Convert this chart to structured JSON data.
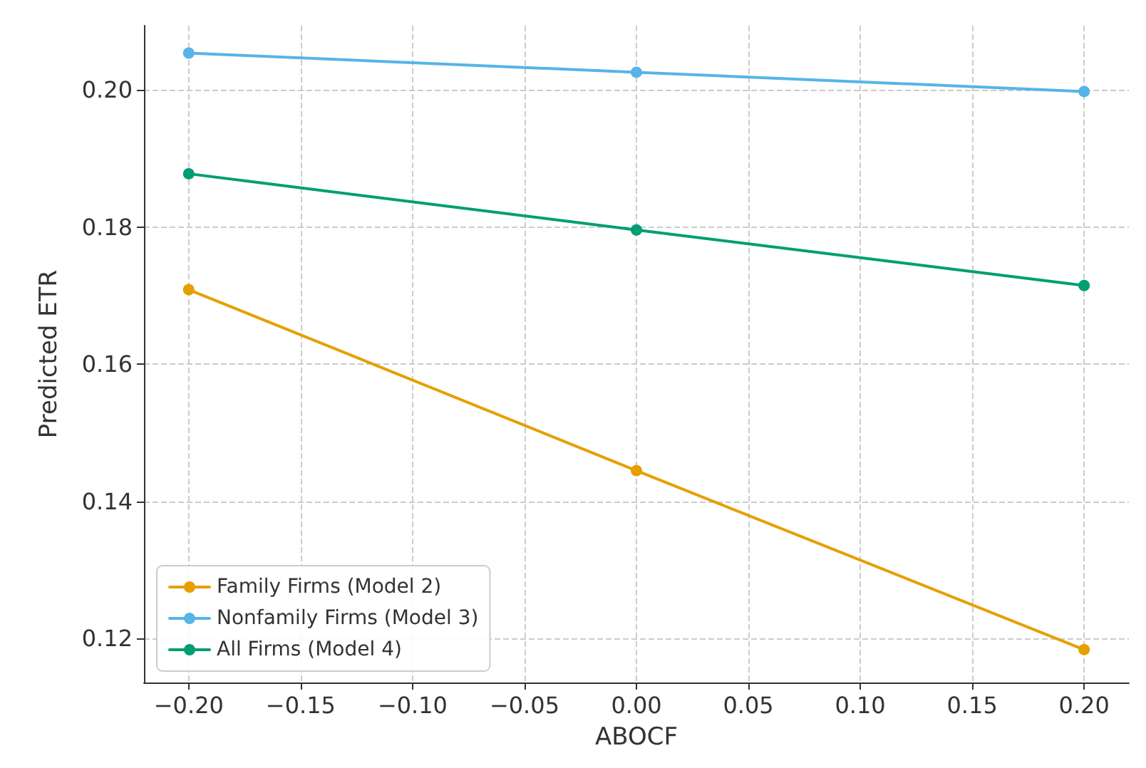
{
  "chart_data": {
    "type": "line",
    "xlabel": "ABOCF",
    "ylabel": "Predicted ETR",
    "x": [
      -0.2,
      0,
      0.2
    ],
    "series": [
      {
        "name": "Family Firms (Model 2)",
        "color": "#e69f00",
        "values": [
          0.1709,
          0.1445,
          0.1184
        ]
      },
      {
        "name": "Nonfamily Firms (Model 3)",
        "color": "#56b4e9",
        "values": [
          0.2054,
          0.2026,
          0.1998
        ]
      },
      {
        "name": "All Firms (Model 4)",
        "color": "#009e73",
        "values": [
          0.1878,
          0.1796,
          0.1715
        ]
      }
    ],
    "xlim": [
      -0.22,
      0.22
    ],
    "ylim": [
      0.1136,
      0.2094
    ],
    "xticks": [
      {
        "value": -0.2,
        "label": "−0.20"
      },
      {
        "value": -0.15,
        "label": "−0.15"
      },
      {
        "value": -0.1,
        "label": "−0.10"
      },
      {
        "value": -0.05,
        "label": "−0.05"
      },
      {
        "value": 0,
        "label": "0.00"
      },
      {
        "value": 0.05,
        "label": "0.05"
      },
      {
        "value": 0.1,
        "label": "0.10"
      },
      {
        "value": 0.15,
        "label": "0.15"
      },
      {
        "value": 0.2,
        "label": "0.20"
      }
    ],
    "yticks": [
      {
        "value": 0.12,
        "label": "0.12"
      },
      {
        "value": 0.14,
        "label": "0.14"
      },
      {
        "value": 0.16,
        "label": "0.16"
      },
      {
        "value": 0.18,
        "label": "0.18"
      },
      {
        "value": 0.2,
        "label": "0.20"
      }
    ],
    "grid": true,
    "legend": "bottom left",
    "marker": "circle",
    "line_style": "solid"
  }
}
